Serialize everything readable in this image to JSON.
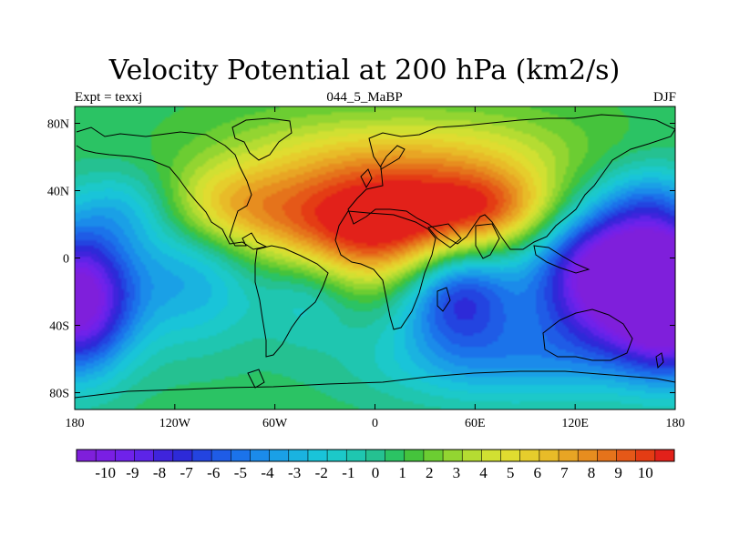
{
  "title": "Velocity Potential at 200 hPa (km2/s)",
  "subtitle_left": "Expt = texxj",
  "subtitle_center": "044_5_MaBP",
  "subtitle_right": "DJF",
  "map": {
    "projection": "cylindrical equidistant",
    "lon_range": [
      -180,
      180
    ],
    "lat_range": [
      -90,
      90
    ],
    "lon_ticks": [
      {
        "lon": -180,
        "label": "180"
      },
      {
        "lon": -120,
        "label": "120W"
      },
      {
        "lon": -60,
        "label": "60W"
      },
      {
        "lon": 0,
        "label": "0"
      },
      {
        "lon": 60,
        "label": "60E"
      },
      {
        "lon": 120,
        "label": "120E"
      },
      {
        "lon": 180,
        "label": "180"
      }
    ],
    "lat_ticks": [
      {
        "lat": 80,
        "label": "80N"
      },
      {
        "lat": 40,
        "label": "40N"
      },
      {
        "lat": 0,
        "label": "0"
      },
      {
        "lat": -40,
        "label": "40S"
      },
      {
        "lat": -80,
        "label": "80S"
      }
    ],
    "field_features": [
      {
        "type": "max",
        "lon": 0,
        "lat": 20,
        "value": 10
      },
      {
        "type": "max",
        "lon": 70,
        "lat": 30,
        "value": 8
      },
      {
        "type": "max",
        "lon": -90,
        "lat": 30,
        "value": 7
      },
      {
        "type": "min",
        "lon": 140,
        "lat": -10,
        "value": -10
      },
      {
        "type": "min",
        "lon": -180,
        "lat": -25,
        "value": -10
      },
      {
        "type": "min",
        "lon": 50,
        "lat": -20,
        "value": -8
      }
    ]
  },
  "colorbar": {
    "labels": [
      "-10",
      "-9",
      "-8",
      "-7",
      "-6",
      "-5",
      "-4",
      "-3",
      "-2",
      "-1",
      "0",
      "1",
      "2",
      "3",
      "4",
      "5",
      "6",
      "7",
      "8",
      "9",
      "10"
    ],
    "colors": [
      "#7f1fdb",
      "#7a1fe4",
      "#6f22ea",
      "#5d24e8",
      "#3f24dc",
      "#2d2ad8",
      "#2344e0",
      "#1f5ce6",
      "#1b73ea",
      "#1b8bea",
      "#1aa0e6",
      "#1ab3e0",
      "#19c4d9",
      "#1cc9c9",
      "#1fc6b0",
      "#25c191",
      "#2bc364",
      "#45c33c",
      "#6ccd32",
      "#93d531",
      "#b5dc32",
      "#d1e032",
      "#e0dc30",
      "#e6cd2c",
      "#e8bb28",
      "#e8a524",
      "#e78d1f",
      "#e5731b",
      "#e55818",
      "#e43c14",
      "#e2211a"
    ]
  }
}
